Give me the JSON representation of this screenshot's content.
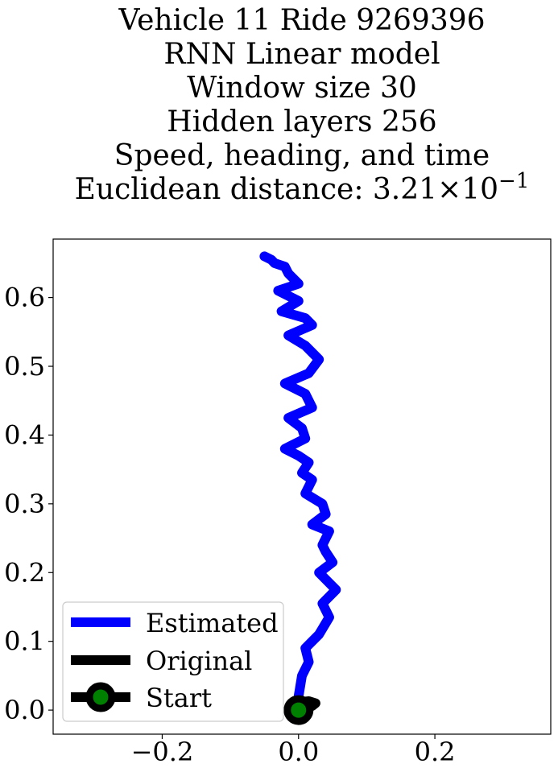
{
  "chart_data": {
    "type": "line",
    "title_lines": [
      "Vehicle 11 Ride 9269396",
      "RNN Linear model",
      "Window size 30",
      "Hidden layers 256",
      "Speed, heading, and time"
    ],
    "metric_label": "Euclidean distance: ",
    "metric_mantissa": "3.21",
    "metric_times": "×",
    "metric_base": "10",
    "metric_exponent": "−1",
    "xlabel": "",
    "ylabel": "",
    "xlim": [
      -0.36,
      0.37
    ],
    "ylim": [
      -0.035,
      0.685
    ],
    "x_ticks": [
      {
        "value": -0.2,
        "label": "−0.2"
      },
      {
        "value": 0.0,
        "label": "0.0"
      },
      {
        "value": 0.2,
        "label": "0.2"
      }
    ],
    "y_ticks": [
      {
        "value": 0.0,
        "label": "0.0"
      },
      {
        "value": 0.1,
        "label": "0.1"
      },
      {
        "value": 0.2,
        "label": "0.2"
      },
      {
        "value": 0.3,
        "label": "0.3"
      },
      {
        "value": 0.4,
        "label": "0.4"
      },
      {
        "value": 0.5,
        "label": "0.5"
      },
      {
        "value": 0.6,
        "label": "0.6"
      }
    ],
    "grid": false,
    "legend_position": "lower-left",
    "colors": {
      "estimated": "#0000ff",
      "original": "#000000",
      "start_marker": "#000000",
      "start_face": "#008000"
    },
    "series": [
      {
        "name": "Estimated",
        "x": [
          0.0,
          0.005,
          0.015,
          0.01,
          0.03,
          0.045,
          0.035,
          0.055,
          0.04,
          0.03,
          0.05,
          0.04,
          0.035,
          0.045,
          0.02,
          0.04,
          0.035,
          0.01,
          0.02,
          0.005,
          0.015,
          0.0,
          -0.02,
          0.01,
          0.005,
          -0.015,
          0.02,
          0.01,
          -0.02,
          0.015,
          0.03,
          0.01,
          -0.015,
          0.02,
          0.01,
          -0.025,
          0.0,
          -0.03,
          0.0,
          -0.015,
          -0.02,
          -0.035,
          -0.04,
          -0.05
        ],
        "y": [
          0.02,
          0.05,
          0.07,
          0.09,
          0.11,
          0.135,
          0.155,
          0.175,
          0.19,
          0.2,
          0.215,
          0.23,
          0.24,
          0.26,
          0.27,
          0.285,
          0.3,
          0.315,
          0.335,
          0.345,
          0.36,
          0.37,
          0.38,
          0.395,
          0.41,
          0.425,
          0.44,
          0.46,
          0.475,
          0.49,
          0.51,
          0.53,
          0.545,
          0.56,
          0.57,
          0.58,
          0.595,
          0.61,
          0.62,
          0.635,
          0.645,
          0.65,
          0.655,
          0.66
        ]
      },
      {
        "name": "Original",
        "x": [
          0.0,
          0.005,
          0.015,
          0.025,
          0.02,
          0.01,
          0.0
        ],
        "y": [
          0.0,
          0.012,
          0.013,
          0.01,
          0.006,
          0.003,
          0.0
        ]
      },
      {
        "name": "Start",
        "x": [
          0.0
        ],
        "y": [
          0.0
        ]
      }
    ]
  }
}
